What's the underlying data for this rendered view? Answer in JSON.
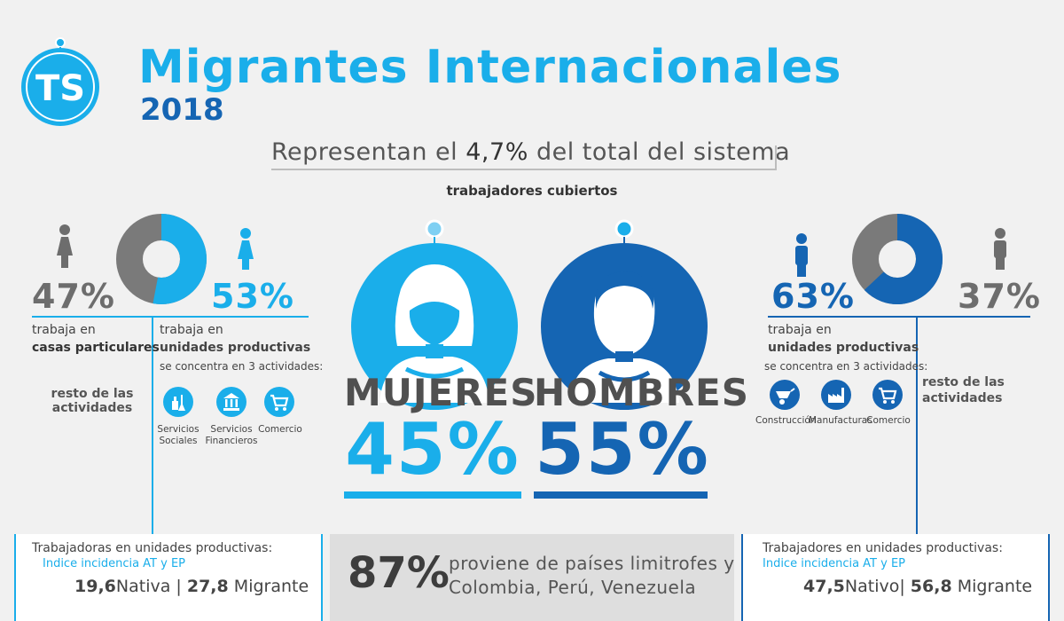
{
  "logo": {
    "text": "TS",
    "color": "#1aaeea"
  },
  "header": {
    "title": "Migrantes Internacionales",
    "year": "2018",
    "representan_pre": "Representan el",
    "representan_pct": "4,7%",
    "representan_post": "del total del sistema",
    "subtitle": "trabajadores cubiertos"
  },
  "women": {
    "label": "MUJERES",
    "pct": "45%",
    "color": "#1aaeea",
    "left_pct": "47%",
    "left_icon": "woman-icon",
    "right_pct": "53%",
    "right_icon": "woman-icon",
    "donut_share": 0.53,
    "casas_pre": "trabaja en",
    "casas_bold": "casas particulares",
    "resto": [
      "resto de las",
      "actividades"
    ],
    "unidades_pre": "trabaja en",
    "unidades_bold": "unidades productivas",
    "concentra": "se concentra en 3 actividades:",
    "activities": [
      {
        "icon": "cleaning-icon",
        "label1": "Servicios",
        "label2": "Sociales"
      },
      {
        "icon": "bank-icon",
        "label1": "Servicios",
        "label2": "Financieros"
      },
      {
        "icon": "cart-icon",
        "label1": "Comercio",
        "label2": ""
      }
    ],
    "box_title": "Trabajadoras en unidades productivas:",
    "box_sub": "Indice incidencia AT y EP",
    "box_native_val": "19,6",
    "box_native_lbl": "Nativa",
    "box_migrant_val": "27,8",
    "box_migrant_lbl": "Migrante"
  },
  "men": {
    "label": "HOMBRES",
    "pct": "55%",
    "color": "#1565b3",
    "left_pct": "63%",
    "left_icon": "man-icon",
    "right_pct": "37%",
    "right_icon": "man-icon",
    "donut_share": 0.63,
    "unidades_pre": "trabaja en",
    "unidades_bold": "unidades productivas",
    "concentra": "se concentra en 3 actividades:",
    "resto": [
      "resto de las",
      "actividades"
    ],
    "activities": [
      {
        "icon": "wheelbarrow-icon",
        "label1": "Construcción"
      },
      {
        "icon": "factory-icon",
        "label1": "Manufacturas"
      },
      {
        "icon": "cart-icon",
        "label1": "Comercio"
      }
    ],
    "box_title": "Trabajadores en unidades productivas:",
    "box_sub": "Indice incidencia AT y EP",
    "box_native_val": "47,5",
    "box_native_lbl": "Nativo",
    "box_migrant_val": "56,8",
    "box_migrant_lbl": "Migrante"
  },
  "origin": {
    "pct": "87%",
    "line1": "proviene de países limitrofes y",
    "line2": "Colombia, Perú, Venezuela"
  }
}
